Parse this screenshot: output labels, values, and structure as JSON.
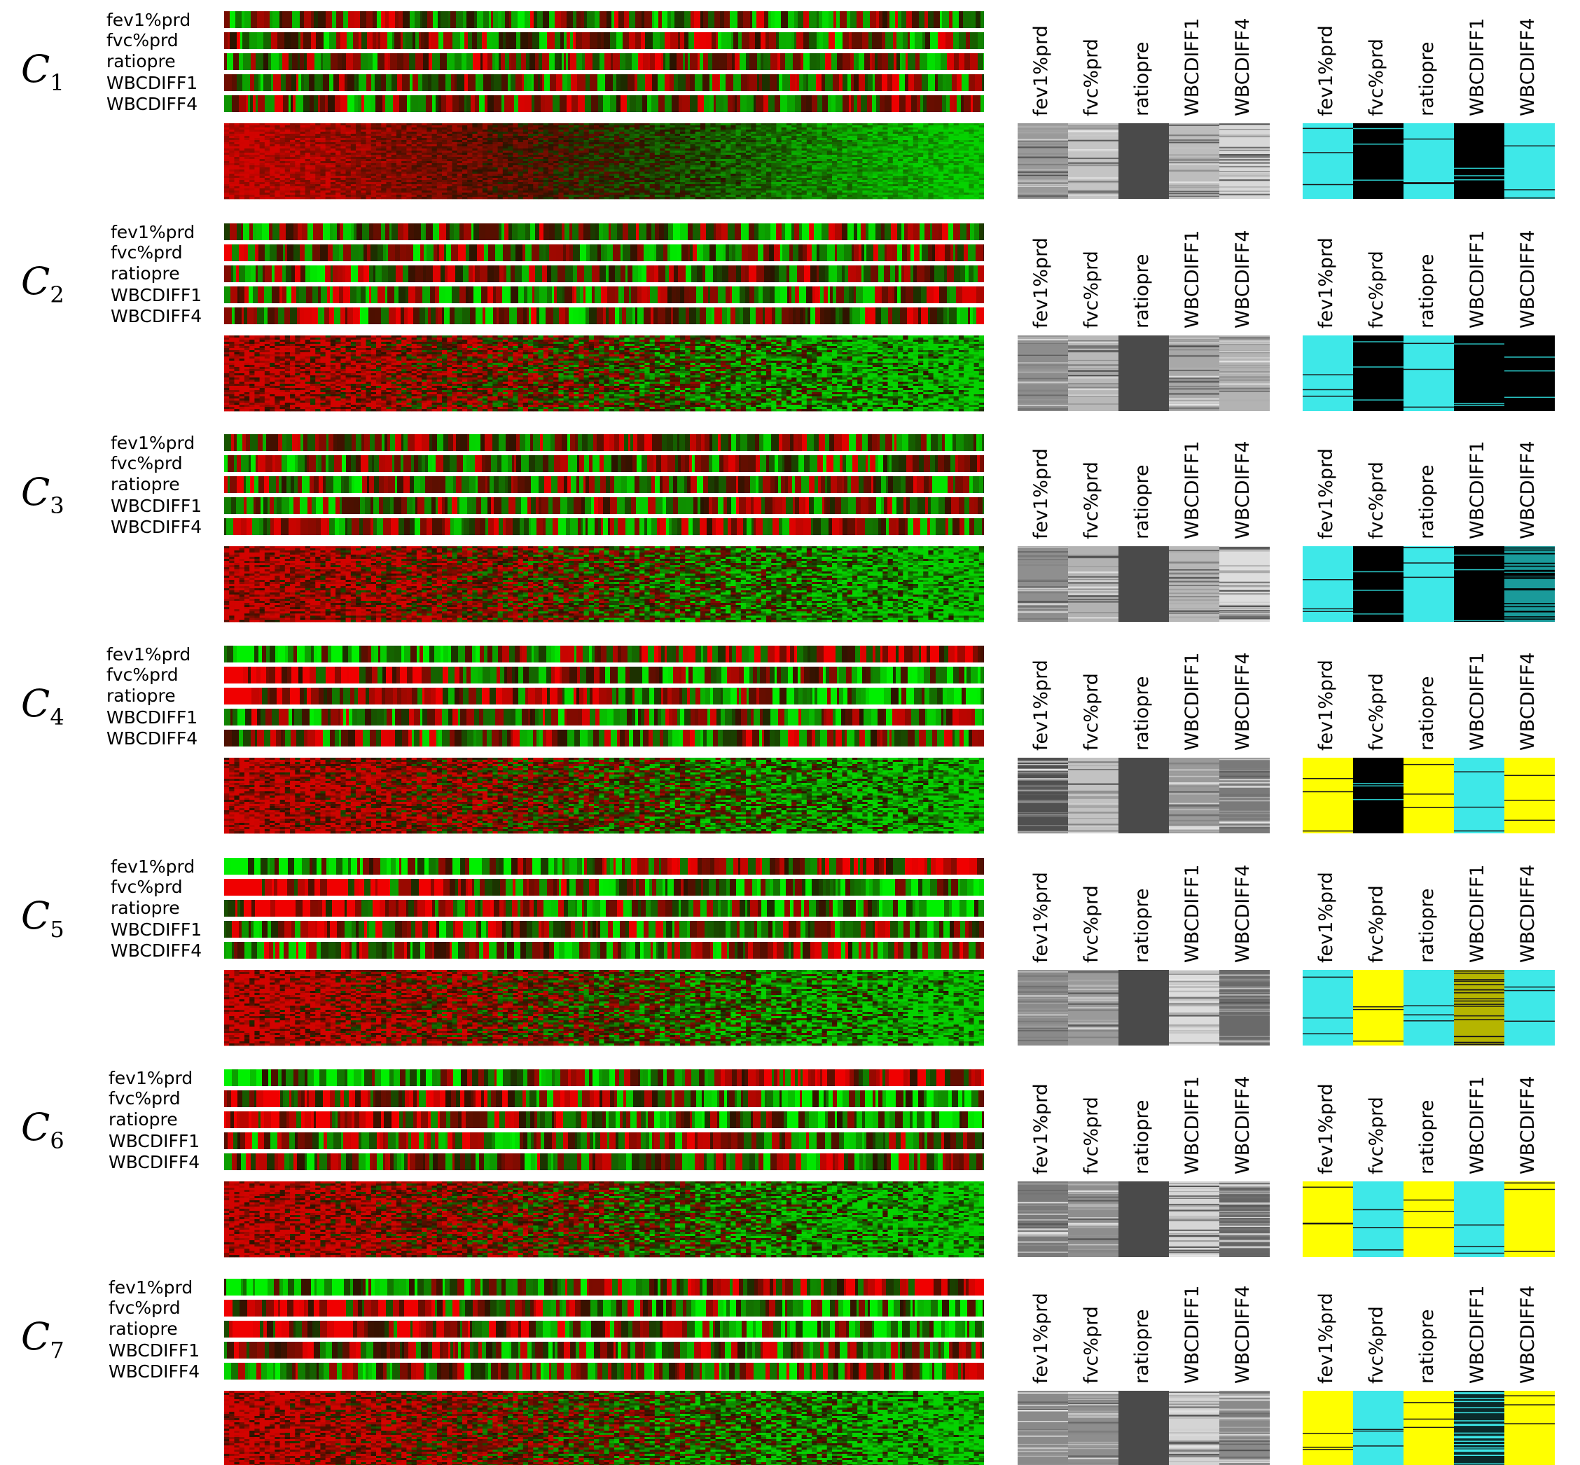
{
  "variables": [
    "fev1%prd",
    "fvc%prd",
    "ratiopre",
    "WBCDIFF1",
    "WBCDIFF4"
  ],
  "clusters": [
    {
      "label": "C",
      "index": "1",
      "gray": [
        "#9a9a9a",
        "#c4c4c4",
        "#4a4a4a",
        "#bdbdbd",
        "#d8d8d8"
      ],
      "cat": [
        "#3ee8e8",
        "#000000",
        "#3ee8e8",
        "#000000",
        "#3ee8e8"
      ]
    },
    {
      "label": "C",
      "index": "2",
      "gray": [
        "#8d8d8d",
        "#b8b8b8",
        "#4a4a4a",
        "#a8a8a8",
        "#b3b3b3"
      ],
      "cat": [
        "#3ee8e8",
        "#000000",
        "#3ee8e8",
        "#000000",
        "#000000"
      ]
    },
    {
      "label": "C",
      "index": "3",
      "gray": [
        "#8f8f8f",
        "#b2b2b2",
        "#4a4a4a",
        "#b8b8b8",
        "#dedede"
      ],
      "cat": [
        "#3ee8e8",
        "#000000",
        "#3ee8e8",
        "#000000",
        "#1a9a9a"
      ]
    },
    {
      "label": "C",
      "index": "4",
      "gray": [
        "#505050",
        "#c2c2c2",
        "#4a4a4a",
        "#9a9a9a",
        "#7a7a7a"
      ],
      "cat": [
        "#ffff00",
        "#000000",
        "#ffff00",
        "#3ee8e8",
        "#ffff00"
      ]
    },
    {
      "label": "C",
      "index": "5",
      "gray": [
        "#8a8a8a",
        "#9a9a9a",
        "#4a4a4a",
        "#dcdcdc",
        "#6a6a6a"
      ],
      "cat": [
        "#3ee8e8",
        "#ffff00",
        "#3ee8e8",
        "#b5b500",
        "#3ee8e8"
      ]
    },
    {
      "label": "C",
      "index": "6",
      "gray": [
        "#7a7a7a",
        "#8e8e8e",
        "#4a4a4a",
        "#d6d6d6",
        "#666666"
      ],
      "cat": [
        "#ffff00",
        "#3ee8e8",
        "#ffff00",
        "#3ee8e8",
        "#ffff00"
      ]
    },
    {
      "label": "C",
      "index": "7",
      "gray": [
        "#8a8a8a",
        "#8e8e8e",
        "#4a4a4a",
        "#d4d4d4",
        "#8a8a8a"
      ],
      "cat": [
        "#ffff00",
        "#3ee8e8",
        "#ffff00",
        "#0a2a2a",
        "#ffff00"
      ]
    }
  ]
}
